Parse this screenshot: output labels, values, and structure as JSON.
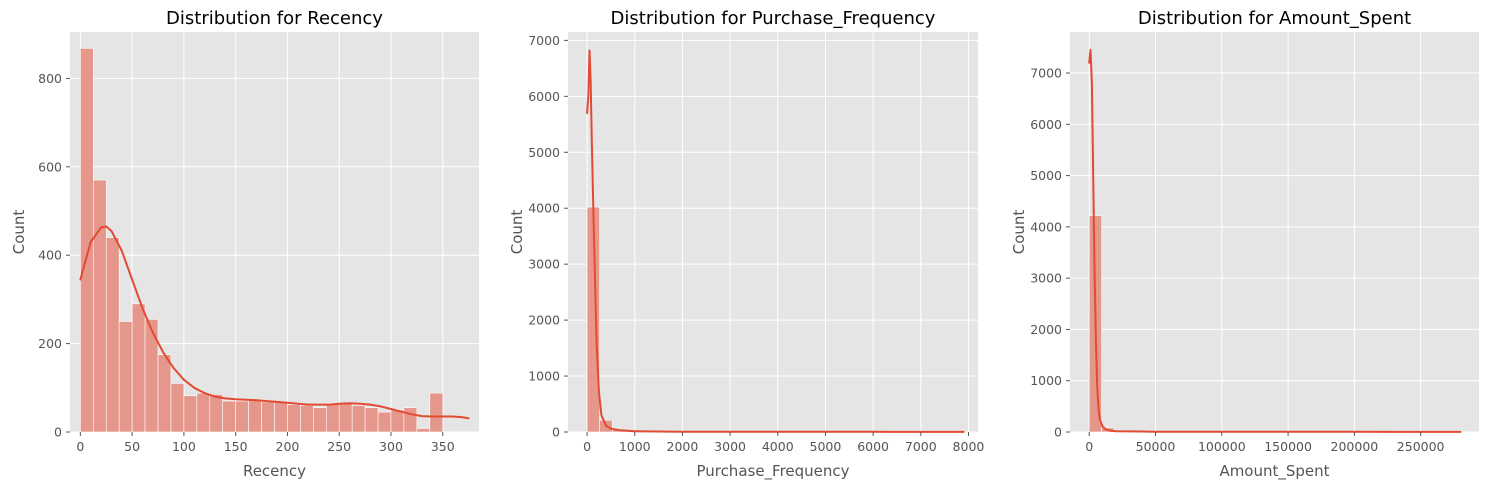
{
  "chart_data": [
    {
      "type": "bar",
      "title": "Distribution for Recency",
      "xlabel": "Recency",
      "ylabel": "Count",
      "xlim": [
        -10,
        385
      ],
      "ylim": [
        0,
        905
      ],
      "xticks": [
        0,
        50,
        100,
        150,
        200,
        250,
        300,
        350
      ],
      "yticks": [
        0,
        200,
        400,
        600,
        800
      ],
      "bins": {
        "start": 0,
        "width": 12.5,
        "counts": [
          868,
          570,
          440,
          250,
          290,
          255,
          175,
          110,
          82,
          88,
          85,
          70,
          70,
          73,
          68,
          68,
          62,
          60,
          55,
          65,
          65,
          60,
          55,
          45,
          50,
          55,
          8,
          88
        ]
      },
      "kde": {
        "x": [
          0,
          10,
          20,
          25,
          30,
          40,
          50,
          60,
          70,
          80,
          90,
          100,
          110,
          120,
          130,
          140,
          150,
          160,
          170,
          180,
          190,
          200,
          210,
          220,
          230,
          240,
          250,
          260,
          270,
          280,
          290,
          300,
          310,
          320,
          330,
          340,
          350,
          360,
          370,
          375
        ],
        "y": [
          345,
          430,
          463,
          465,
          455,
          410,
          345,
          280,
          225,
          180,
          145,
          118,
          100,
          88,
          80,
          76,
          74,
          73,
          72,
          70,
          68,
          66,
          64,
          62,
          62,
          62,
          64,
          65,
          64,
          62,
          58,
          52,
          46,
          40,
          36,
          35,
          35,
          35,
          33,
          31
        ]
      },
      "colors": {
        "bar": "#e4978a",
        "line": "#e24a33"
      }
    },
    {
      "type": "bar",
      "title": "Distribution for Purchase_Frequency",
      "xlabel": "Purchase_Frequency",
      "ylabel": "Count",
      "xlim": [
        -400,
        8200
      ],
      "ylim": [
        0,
        7150
      ],
      "xticks": [
        0,
        1000,
        2000,
        3000,
        4000,
        5000,
        6000,
        7000,
        8000
      ],
      "yticks": [
        0,
        1000,
        2000,
        3000,
        4000,
        5000,
        6000,
        7000
      ],
      "bins": {
        "start": 0,
        "width": 264,
        "counts": [
          4020,
          210,
          40,
          15,
          8,
          5,
          5,
          4,
          3,
          3,
          3,
          2,
          2,
          2,
          2,
          2,
          2,
          2,
          2,
          2,
          2,
          2,
          2,
          2,
          2,
          2,
          2,
          2,
          2,
          2
        ]
      },
      "kde": {
        "x": [
          0,
          25,
          50,
          75,
          100,
          150,
          200,
          250,
          300,
          400,
          500,
          700,
          1000,
          2000,
          4000,
          6000,
          7900
        ],
        "y": [
          5700,
          6000,
          6820,
          6300,
          5200,
          3300,
          1600,
          700,
          300,
          110,
          60,
          30,
          15,
          6,
          4,
          3,
          2
        ]
      },
      "colors": {
        "bar": "#e4978a",
        "line": "#e24a33"
      }
    },
    {
      "type": "bar",
      "title": "Distribution for Amount_Spent",
      "xlabel": "Amount_Spent",
      "ylabel": "Count",
      "xlim": [
        -14500,
        294000
      ],
      "ylim": [
        0,
        7800
      ],
      "xticks": [
        0,
        50000,
        100000,
        150000,
        200000,
        250000
      ],
      "yticks": [
        0,
        1000,
        2000,
        3000,
        4000,
        5000,
        6000,
        7000
      ],
      "bins": {
        "start": 0,
        "width": 9363,
        "counts": [
          4220,
          80,
          20,
          8,
          5,
          3,
          3,
          2,
          2,
          2,
          2,
          2,
          2,
          2,
          2,
          2,
          2,
          2,
          2,
          2,
          2,
          2,
          2,
          2,
          2,
          2,
          2,
          2,
          2,
          2
        ]
      },
      "kde": {
        "x": [
          0,
          1000,
          2000,
          3000,
          4000,
          5000,
          6000,
          7000,
          8000,
          10000,
          12000,
          15000,
          20000,
          50000,
          100000,
          200000,
          280000
        ],
        "y": [
          7200,
          7450,
          6800,
          5000,
          3200,
          1800,
          900,
          450,
          250,
          110,
          60,
          30,
          15,
          6,
          4,
          3,
          2
        ]
      },
      "colors": {
        "bar": "#e4978a",
        "line": "#e24a33"
      }
    }
  ]
}
